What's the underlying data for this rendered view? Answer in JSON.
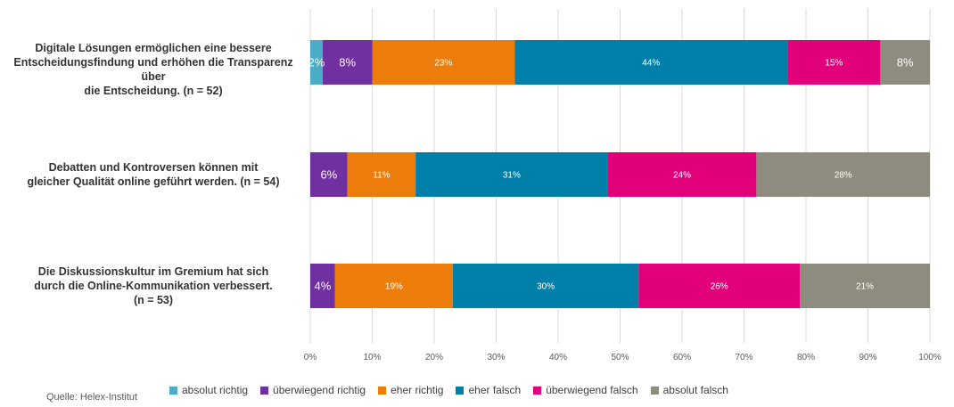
{
  "chart_data": {
    "type": "bar",
    "orientation": "horizontal",
    "stacked": true,
    "percent": true,
    "categories": [
      "Digitale Lösungen ermöglichen eine bessere Entscheidungsfindung und erhöhen die Transparenz über die Entscheidung. (n = 52)",
      "Debatten und Kontroversen können mit gleicher Qualität online geführt werden. (n = 54)",
      "Die Diskussionskultur im Gremium hat sich durch die Online-Kommunikation verbessert. (n = 53)"
    ],
    "series": [
      {
        "name": "absolut richtig",
        "color": "#4BACC6",
        "values": [
          2,
          0,
          0
        ],
        "labels": [
          "2%",
          "",
          ""
        ]
      },
      {
        "name": "überwiegend richtig",
        "color": "#7030A0",
        "values": [
          8,
          6,
          4
        ],
        "labels": [
          "8%",
          "6%",
          "4%"
        ]
      },
      {
        "name": "eher richtig",
        "color": "#ED7D0A",
        "values": [
          23,
          11,
          19
        ],
        "labels": [
          "23%",
          "11%",
          "19%"
        ]
      },
      {
        "name": "eher falsch",
        "color": "#0080A8",
        "values": [
          44,
          31,
          30
        ],
        "labels": [
          "44%",
          "31%",
          "30%"
        ]
      },
      {
        "name": "überwiegend falsch",
        "color": "#E2007A",
        "values": [
          15,
          24,
          26
        ],
        "labels": [
          "15%",
          "24%",
          "26%"
        ]
      },
      {
        "name": "absolut falsch",
        "color": "#8E8C7F",
        "values": [
          8,
          28,
          21
        ],
        "labels": [
          "8%",
          "28%",
          "21%"
        ]
      }
    ],
    "xlim": [
      0,
      100
    ],
    "xticks": [
      "0%",
      "10%",
      "20%",
      "30%",
      "40%",
      "50%",
      "60%",
      "70%",
      "80%",
      "90%",
      "100%"
    ],
    "grid": true,
    "legend_position": "bottom"
  },
  "category_lines": [
    [
      "Digitale Lösungen ermöglichen eine bessere",
      "Entscheidungsfindung und erhöhen die Transparenz über",
      "die Entscheidung. (n = 52)"
    ],
    [
      "Debatten und Kontroversen können mit",
      "gleicher Qualität online geführt werden. (n = 54)"
    ],
    [
      "Die Diskussionskultur im Gremium hat sich",
      "durch die Online-Kommunikation verbessert.",
      "(n = 53)"
    ]
  ],
  "source": "Quelle: Helex-Institut"
}
